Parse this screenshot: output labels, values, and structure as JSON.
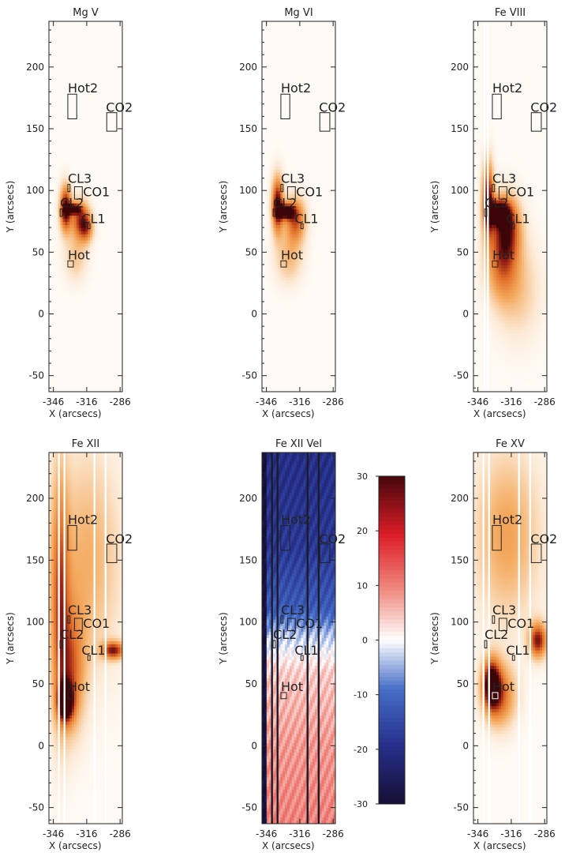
{
  "chart_data": [
    {
      "type": "heatmap",
      "title": "Mg V",
      "xlabel": "X (arcsecs)",
      "ylabel": "Y (arcsecs)",
      "xlim": [
        -350,
        -284
      ],
      "ylim": [
        -63,
        237
      ],
      "xticks": [
        -346,
        -316,
        -286
      ],
      "yticks": [
        -50,
        0,
        50,
        100,
        150,
        200
      ],
      "colormap": "white-orange-darkred",
      "features": [
        {
          "cx": -335,
          "cy": 85,
          "rx": 5,
          "ry": 18,
          "strength": 1.0
        },
        {
          "cx": -328,
          "cy": 85,
          "rx": 6,
          "ry": 4,
          "strength": 1.0
        },
        {
          "cx": -322,
          "cy": 76,
          "rx": 8,
          "ry": 16,
          "strength": 0.7
        },
        {
          "cx": -316,
          "cy": 70,
          "rx": 6,
          "ry": 12,
          "strength": 0.5
        },
        {
          "cx": -326,
          "cy": 45,
          "rx": 10,
          "ry": 18,
          "strength": 0.25
        }
      ],
      "regions": [
        {
          "name": "Hot2",
          "x": [
            -333,
            -325
          ],
          "y": [
            158,
            178
          ]
        },
        {
          "name": "CO2",
          "x": [
            -298,
            -289
          ],
          "y": [
            148,
            163
          ]
        },
        {
          "name": "CL3",
          "x": [
            -333,
            -331
          ],
          "y": [
            99,
            105
          ]
        },
        {
          "name": "CO1",
          "x": [
            -327,
            -320
          ],
          "y": [
            93,
            103
          ]
        },
        {
          "name": "CL2",
          "x": [
            -340,
            -338
          ],
          "y": [
            79,
            85
          ]
        },
        {
          "name": "CL1",
          "x": [
            -315,
            -313
          ],
          "y": [
            69,
            73
          ]
        },
        {
          "name": "Hot",
          "x": [
            -333,
            -328
          ],
          "y": [
            38,
            43
          ]
        }
      ],
      "stripes": []
    },
    {
      "type": "heatmap",
      "title": "Mg VI",
      "xlabel": "X (arcsecs)",
      "ylabel": "Y (arcsecs)",
      "xlim": [
        -350,
        -284
      ],
      "ylim": [
        -63,
        237
      ],
      "xticks": [
        -346,
        -316,
        -286
      ],
      "yticks": [
        -50,
        0,
        50,
        100,
        150,
        200
      ],
      "colormap": "white-orange-darkred",
      "features": [
        {
          "cx": -336,
          "cy": 88,
          "rx": 5,
          "ry": 22,
          "strength": 1.0
        },
        {
          "cx": -328,
          "cy": 83,
          "rx": 7,
          "ry": 6,
          "strength": 1.0
        },
        {
          "cx": -320,
          "cy": 76,
          "rx": 9,
          "ry": 18,
          "strength": 0.7
        },
        {
          "cx": -326,
          "cy": 45,
          "rx": 12,
          "ry": 20,
          "strength": 0.3
        }
      ],
      "regions": [
        {
          "name": "Hot2",
          "x": [
            -333,
            -325
          ],
          "y": [
            158,
            178
          ]
        },
        {
          "name": "CO2",
          "x": [
            -298,
            -289
          ],
          "y": [
            148,
            163
          ]
        },
        {
          "name": "CL3",
          "x": [
            -333,
            -331
          ],
          "y": [
            99,
            105
          ]
        },
        {
          "name": "CO1",
          "x": [
            -327,
            -320
          ],
          "y": [
            93,
            103
          ]
        },
        {
          "name": "CL2",
          "x": [
            -340,
            -338
          ],
          "y": [
            79,
            85
          ]
        },
        {
          "name": "CL1",
          "x": [
            -315,
            -313
          ],
          "y": [
            69,
            73
          ]
        },
        {
          "name": "Hot",
          "x": [
            -333,
            -328
          ],
          "y": [
            38,
            43
          ]
        }
      ],
      "stripes": []
    },
    {
      "type": "heatmap",
      "title": "Fe VIII",
      "xlabel": "X (arcsecs)",
      "ylabel": "Y (arcsecs)",
      "xlim": [
        -350,
        -284
      ],
      "ylim": [
        -63,
        237
      ],
      "xticks": [
        -346,
        -316,
        -286
      ],
      "yticks": [
        -50,
        0,
        50,
        100,
        150,
        200
      ],
      "colormap": "white-orange-darkred",
      "features": [
        {
          "cx": -337,
          "cy": 92,
          "rx": 5,
          "ry": 30,
          "strength": 1.0
        },
        {
          "cx": -327,
          "cy": 82,
          "rx": 9,
          "ry": 10,
          "strength": 0.95
        },
        {
          "cx": -320,
          "cy": 70,
          "rx": 12,
          "ry": 25,
          "strength": 0.8
        },
        {
          "cx": -325,
          "cy": 40,
          "rx": 14,
          "ry": 30,
          "strength": 0.5
        },
        {
          "cx": -310,
          "cy": 20,
          "rx": 20,
          "ry": 40,
          "strength": 0.25
        }
      ],
      "regions": [
        {
          "name": "Hot2",
          "x": [
            -333,
            -325
          ],
          "y": [
            158,
            178
          ]
        },
        {
          "name": "CO2",
          "x": [
            -298,
            -289
          ],
          "y": [
            148,
            163
          ]
        },
        {
          "name": "CL3",
          "x": [
            -333,
            -331
          ],
          "y": [
            99,
            105
          ]
        },
        {
          "name": "CO1",
          "x": [
            -327,
            -320
          ],
          "y": [
            93,
            103
          ]
        },
        {
          "name": "CL2",
          "x": [
            -340,
            -338
          ],
          "y": [
            79,
            85
          ]
        },
        {
          "name": "CL1",
          "x": [
            -315,
            -313
          ],
          "y": [
            69,
            73
          ]
        },
        {
          "name": "Hot",
          "x": [
            -333,
            -328
          ],
          "y": [
            38,
            43
          ]
        }
      ],
      "stripes": [
        -340,
        -337
      ]
    },
    {
      "type": "heatmap",
      "title": "Fe XII",
      "xlabel": "X (arcsecs)",
      "ylabel": "Y (arcsecs)",
      "xlim": [
        -350,
        -284
      ],
      "ylim": [
        -63,
        237
      ],
      "xticks": [
        -346,
        -316,
        -286
      ],
      "yticks": [
        -50,
        0,
        50,
        100,
        150,
        200
      ],
      "colormap": "white-orange-darkred",
      "features": [
        {
          "cx": -340,
          "cy": 120,
          "rx": 8,
          "ry": 100,
          "strength": 0.6
        },
        {
          "cx": -330,
          "cy": 60,
          "rx": 12,
          "ry": 50,
          "strength": 0.55
        },
        {
          "cx": -335,
          "cy": 35,
          "rx": 7,
          "ry": 15,
          "strength": 1.0
        },
        {
          "cx": -292,
          "cy": 77,
          "rx": 10,
          "ry": 7,
          "strength": 0.8
        },
        {
          "cx": -315,
          "cy": 150,
          "rx": 30,
          "ry": 90,
          "strength": 0.35
        }
      ],
      "regions": [
        {
          "name": "Hot2",
          "x": [
            -333,
            -325
          ],
          "y": [
            158,
            178
          ]
        },
        {
          "name": "CO2",
          "x": [
            -298,
            -289
          ],
          "y": [
            148,
            163
          ]
        },
        {
          "name": "CL3",
          "x": [
            -333,
            -331
          ],
          "y": [
            99,
            105
          ]
        },
        {
          "name": "CO1",
          "x": [
            -327,
            -320
          ],
          "y": [
            93,
            103
          ]
        },
        {
          "name": "CL2",
          "x": [
            -340,
            -338
          ],
          "y": [
            79,
            85
          ]
        },
        {
          "name": "CL1",
          "x": [
            -315,
            -313
          ],
          "y": [
            69,
            73
          ]
        },
        {
          "name": "Hot",
          "x": [
            -333,
            -328
          ],
          "y": [
            38,
            43
          ]
        }
      ],
      "stripes": [
        -341,
        -336,
        -309,
        -299
      ]
    },
    {
      "type": "heatmap",
      "title": "Fe XII Vel",
      "xlabel": "X (arcsecs)",
      "ylabel": "Y (arcsecs)",
      "xlim": [
        -350,
        -284
      ],
      "ylim": [
        -63,
        237
      ],
      "xticks": [
        -346,
        -316,
        -286
      ],
      "yticks": [
        -50,
        0,
        50,
        100,
        150,
        200
      ],
      "colormap": "blue-white-red",
      "colorbar": {
        "min": -30,
        "max": 30,
        "ticks": [
          -30,
          -20,
          -10,
          0,
          10,
          20,
          30
        ]
      },
      "velocity_profile": [
        {
          "y": 237,
          "v": -20
        },
        {
          "y": 160,
          "v": -18
        },
        {
          "y": 110,
          "v": -12
        },
        {
          "y": 90,
          "v": -4
        },
        {
          "y": 60,
          "v": 4
        },
        {
          "y": 0,
          "v": 8
        },
        {
          "y": -63,
          "v": 10
        }
      ],
      "regions": [
        {
          "name": "Hot2",
          "x": [
            -333,
            -325
          ],
          "y": [
            158,
            178
          ]
        },
        {
          "name": "CO2",
          "x": [
            -298,
            -289
          ],
          "y": [
            148,
            163
          ]
        },
        {
          "name": "CL3",
          "x": [
            -333,
            -331
          ],
          "y": [
            99,
            105
          ]
        },
        {
          "name": "CO1",
          "x": [
            -327,
            -320
          ],
          "y": [
            93,
            103
          ]
        },
        {
          "name": "CL2",
          "x": [
            -340,
            -338
          ],
          "y": [
            79,
            85
          ]
        },
        {
          "name": "CL1",
          "x": [
            -315,
            -313
          ],
          "y": [
            69,
            73
          ]
        },
        {
          "name": "Hot",
          "x": [
            -333,
            -328
          ],
          "y": [
            38,
            43
          ]
        }
      ],
      "stripes": [
        -341,
        -336,
        -309,
        -299
      ]
    },
    {
      "type": "heatmap",
      "title": "Fe XV",
      "xlabel": "X (arcsecs)",
      "ylabel": "Y (arcsecs)",
      "xlim": [
        -350,
        -284
      ],
      "ylim": [
        -63,
        237
      ],
      "xticks": [
        -346,
        -316,
        -286
      ],
      "yticks": [
        -50,
        0,
        50,
        100,
        150,
        200
      ],
      "colormap": "white-orange-darkred",
      "features": [
        {
          "cx": -334,
          "cy": 50,
          "rx": 8,
          "ry": 20,
          "strength": 1.0
        },
        {
          "cx": -326,
          "cy": 40,
          "rx": 14,
          "ry": 25,
          "strength": 0.6
        },
        {
          "cx": -292,
          "cy": 85,
          "rx": 8,
          "ry": 14,
          "strength": 0.85
        },
        {
          "cx": -320,
          "cy": 170,
          "rx": 30,
          "ry": 70,
          "strength": 0.4
        }
      ],
      "regions": [
        {
          "name": "Hot2",
          "x": [
            -333,
            -325
          ],
          "y": [
            158,
            178
          ]
        },
        {
          "name": "CO2",
          "x": [
            -298,
            -289
          ],
          "y": [
            148,
            163
          ]
        },
        {
          "name": "CL3",
          "x": [
            -333,
            -331
          ],
          "y": [
            99,
            105
          ]
        },
        {
          "name": "CO1",
          "x": [
            -327,
            -320
          ],
          "y": [
            93,
            103
          ]
        },
        {
          "name": "CL2",
          "x": [
            -340,
            -338
          ],
          "y": [
            79,
            85
          ]
        },
        {
          "name": "CL1",
          "x": [
            -315,
            -313
          ],
          "y": [
            69,
            73
          ]
        },
        {
          "name": "Hot",
          "x": [
            -333,
            -328
          ],
          "y": [
            38,
            43
          ]
        }
      ],
      "stripes": [
        -341,
        -336,
        -309,
        -299
      ]
    }
  ]
}
